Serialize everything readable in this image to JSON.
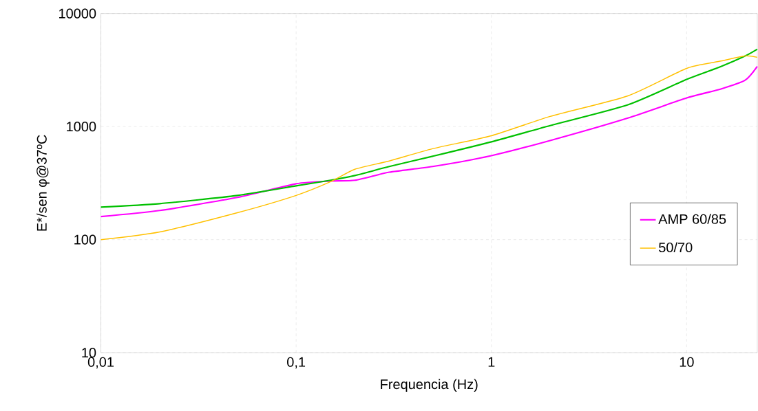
{
  "chart_data": {
    "type": "line",
    "xlabel": "Frequencia (Hz)",
    "ylabel": "E*/sen φ@37ºC",
    "x": [
      0.01,
      0.02,
      0.05,
      0.1,
      0.15,
      0.2,
      0.3,
      0.5,
      1,
      2,
      5,
      10,
      15,
      20,
      23
    ],
    "series": [
      {
        "name": "AMP 60/85",
        "color": "#ff00ff",
        "values": [
          160,
          181,
          236,
          312,
          330,
          335,
          395,
          443,
          553,
          753,
          1190,
          1790,
          2150,
          2580,
          3400
        ]
      },
      {
        "color": "#00c000",
        "values": [
          194,
          208,
          246,
          299,
          335,
          369,
          443,
          546,
          733,
          1020,
          1556,
          2610,
          3400,
          4220,
          4830
        ]
      },
      {
        "name": "50/70",
        "color": "#ffc000",
        "values": [
          100,
          117,
          173,
          246,
          325,
          419,
          496,
          637,
          830,
          1230,
          1870,
          3270,
          3800,
          4220,
          4100
        ]
      }
    ],
    "log": "xy",
    "xlim": [
      0.01,
      23
    ],
    "ylim": [
      10,
      10000
    ],
    "xticks": [
      {
        "value": 0.01,
        "label": "0,01"
      },
      {
        "value": 0.1,
        "label": "0,1"
      },
      1,
      10
    ],
    "yticks": [
      10,
      100,
      1000,
      10000
    ],
    "grid": true,
    "legend": "right",
    "marker": "none",
    "line_style": "solid"
  }
}
